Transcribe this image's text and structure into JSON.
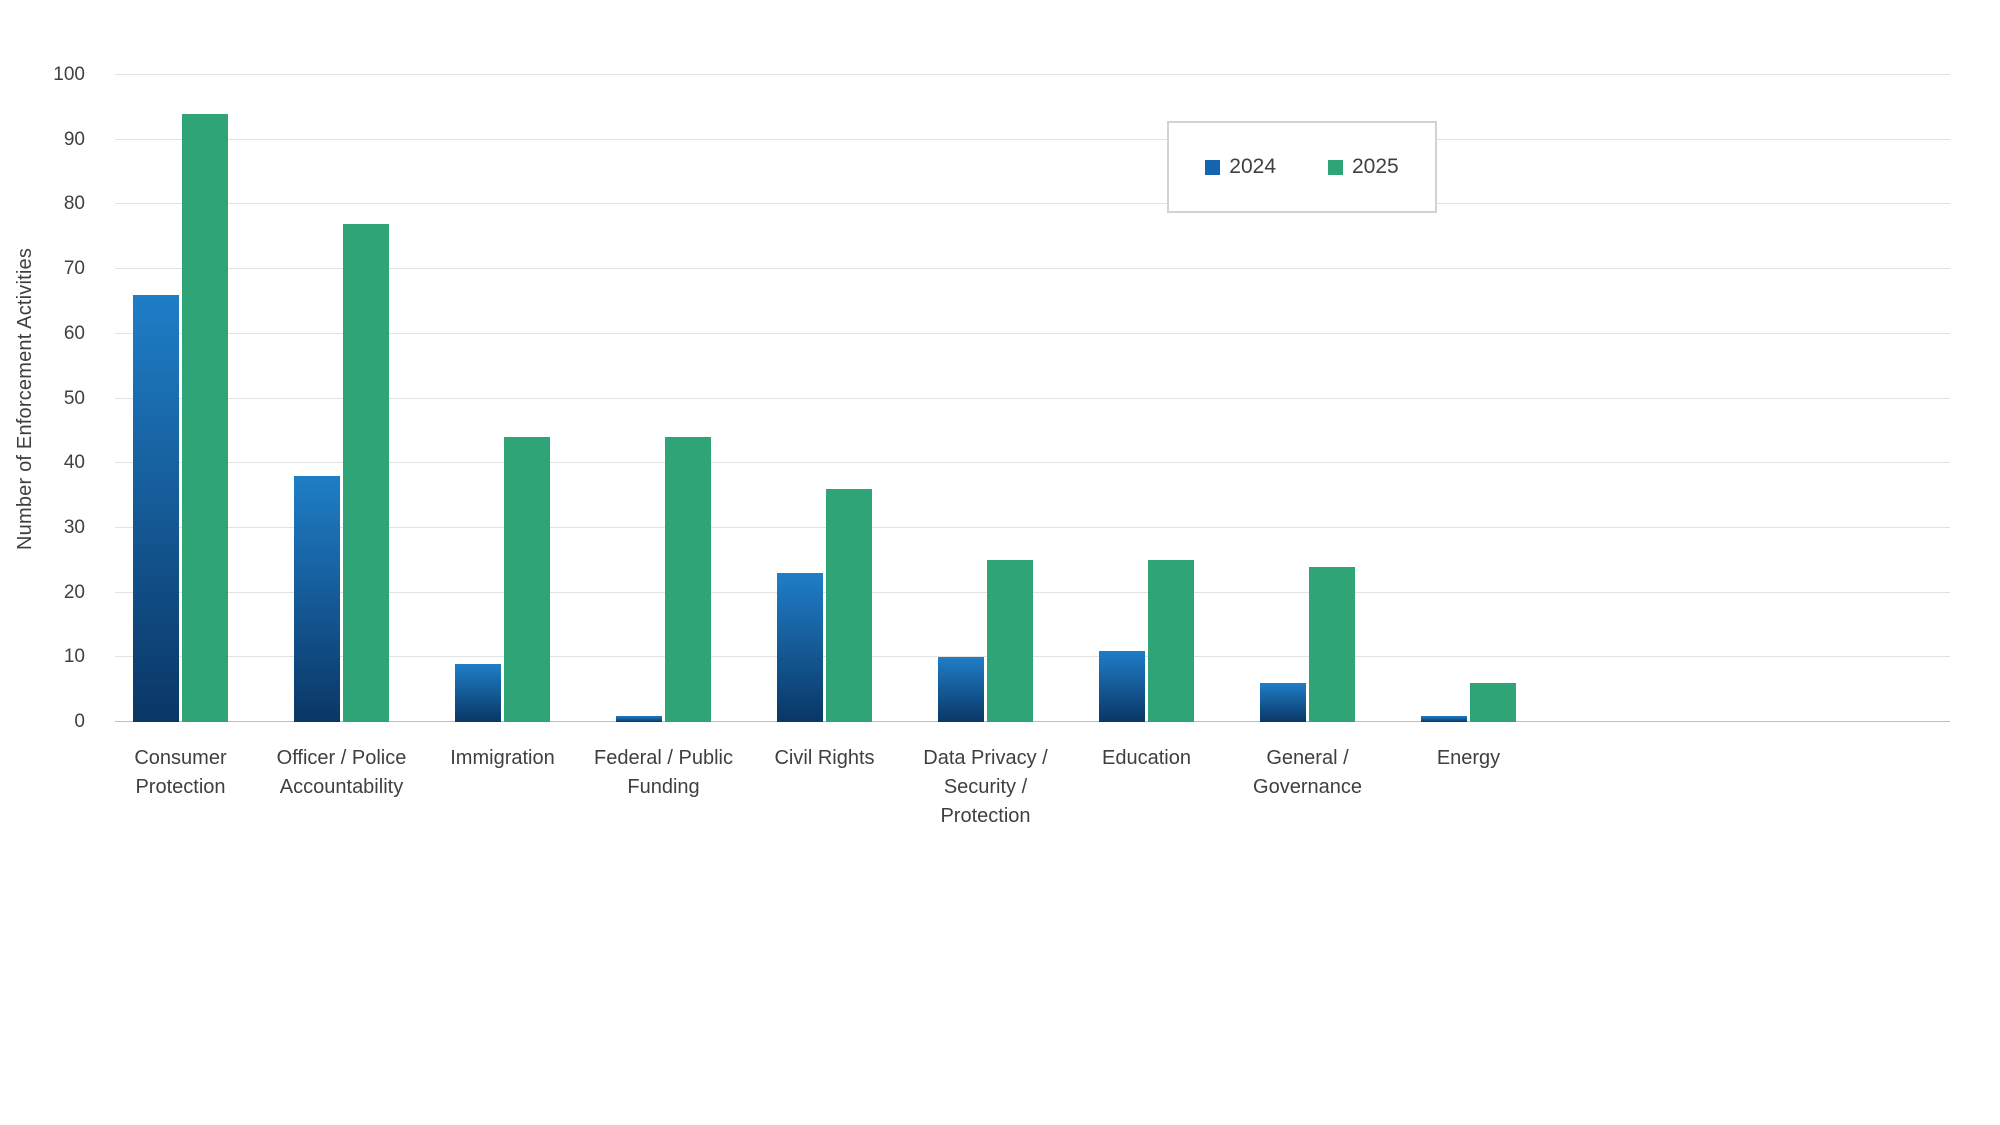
{
  "chart_data": {
    "type": "bar",
    "title": "",
    "xlabel": "",
    "ylabel": "Number of Enforcement Activities",
    "ylim": [
      0,
      100
    ],
    "ytick_step": 10,
    "grid": true,
    "legend_position": "top-right",
    "categories": [
      {
        "label": "Consumer Protection",
        "lines": [
          "Consumer",
          "Protection"
        ]
      },
      {
        "label": "Officer / Police Accountability",
        "lines": [
          "Officer / Police",
          "Accountability"
        ]
      },
      {
        "label": "Immigration",
        "lines": [
          "Immigration"
        ]
      },
      {
        "label": "Federal / Public Funding",
        "lines": [
          "Federal / Public",
          "Funding"
        ]
      },
      {
        "label": "Civil Rights",
        "lines": [
          "Civil Rights"
        ]
      },
      {
        "label": "Data Privacy / Security / Protection",
        "lines": [
          "Data Privacy /",
          "Security /",
          "Protection"
        ]
      },
      {
        "label": "Education",
        "lines": [
          "Education"
        ]
      },
      {
        "label": "General / Governance",
        "lines": [
          "General /",
          "Governance"
        ]
      },
      {
        "label": "Energy",
        "lines": [
          "Energy"
        ]
      }
    ],
    "series": [
      {
        "name": "2024",
        "values": [
          66,
          38,
          9,
          1,
          23,
          10,
          11,
          6,
          1
        ],
        "color_top": "#1f7ec7",
        "color_bottom": "#0a3766",
        "legend_color": "#1464b0"
      },
      {
        "name": "2025",
        "values": [
          94,
          77,
          44,
          44,
          36,
          25,
          25,
          24,
          6
        ],
        "color": "#2fa577",
        "legend_color": "#2fa577"
      }
    ],
    "colors": {
      "gridline": "#e2e2e2",
      "axis_line": "#bfbfbf",
      "text": "#404040",
      "background": "#ffffff",
      "legend_border": "#d2d2d2"
    }
  }
}
